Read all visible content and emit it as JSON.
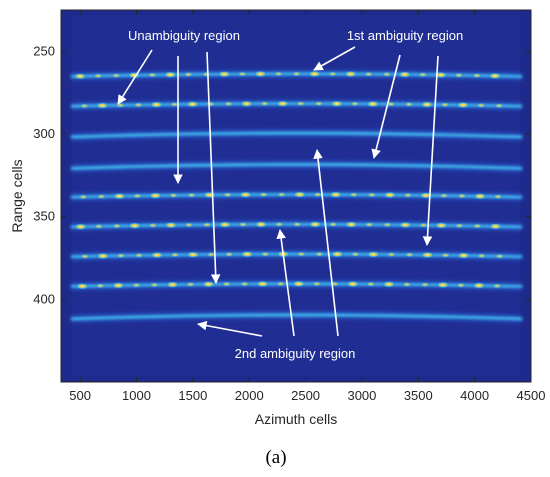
{
  "chart_data": {
    "type": "heatmap",
    "xlabel": "Azimuth cells",
    "ylabel": "Range cells",
    "xlim": [
      330,
      4500
    ],
    "ylim": [
      450,
      225
    ],
    "xticks": [
      500,
      1000,
      1500,
      2000,
      2500,
      3000,
      3500,
      4000,
      4500
    ],
    "yticks": [
      250,
      300,
      350,
      400
    ],
    "grid": false,
    "colormap": "parula",
    "colors": {
      "background": "#1e2a8c",
      "stripe_core": "#f5f0a0",
      "stripe_mid": "#3fc2e6",
      "stripe_edge": "#1f62d8"
    },
    "stripes_range_cells": [
      264,
      282,
      300,
      319,
      337,
      355,
      373,
      391,
      410
    ],
    "annotations": [
      {
        "text": "Unambiguity region"
      },
      {
        "text": "1st ambiguity region"
      },
      {
        "text": "2nd ambiguity region"
      }
    ]
  },
  "caption": "(a)"
}
